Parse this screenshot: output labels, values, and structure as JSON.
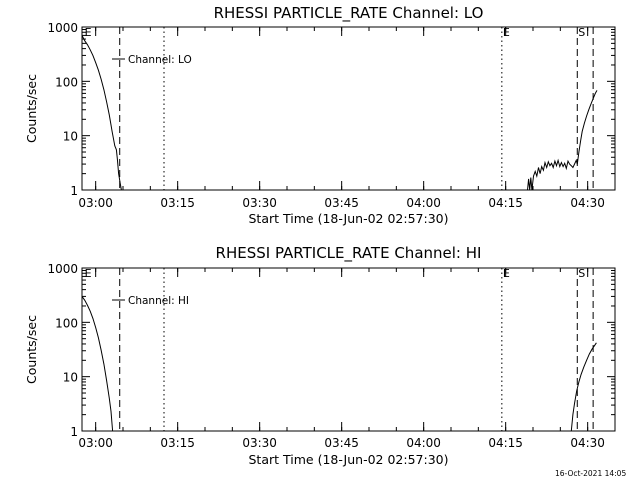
{
  "footer": {
    "timestamp": "16-Oct-2021 14:05"
  },
  "chart_data": [
    {
      "type": "line",
      "title": "RHESSI PARTICLE_RATE Channel: LO",
      "xlabel": "Start Time (18-Jun-02 02:57:30)",
      "ylabel": "Counts/sec",
      "yscale": "log",
      "ylim": [
        1,
        1000
      ],
      "xlim_minutes": [
        0,
        97.5
      ],
      "x_ticks": [
        {
          "min": 2.5,
          "label": "03:00"
        },
        {
          "min": 17.5,
          "label": "03:15"
        },
        {
          "min": 32.5,
          "label": "03:30"
        },
        {
          "min": 47.5,
          "label": "03:45"
        },
        {
          "min": 62.5,
          "label": "04:00"
        },
        {
          "min": 77.5,
          "label": "04:15"
        },
        {
          "min": 92.5,
          "label": "04:30"
        }
      ],
      "y_ticks": [
        {
          "value": 1,
          "label": "1"
        },
        {
          "value": 10,
          "label": "10"
        },
        {
          "value": 100,
          "label": "100"
        },
        {
          "value": 1000,
          "label": "1000"
        }
      ],
      "legend": "Channel: LO",
      "markers": [
        {
          "min": 0.3,
          "label": "E"
        },
        {
          "min": 76.8,
          "label": "E"
        },
        {
          "min": 90.6,
          "label": "S"
        }
      ],
      "vlines": [
        {
          "min": 6.9,
          "style": "dashed"
        },
        {
          "min": 15.0,
          "style": "dotted"
        },
        {
          "min": 76.8,
          "style": "dotted"
        },
        {
          "min": 90.6,
          "style": "dashed"
        },
        {
          "min": 93.5,
          "style": "dashed"
        }
      ],
      "series": [
        {
          "name": "Channel: LO",
          "segments": [
            [
              [
                0.0,
                700
              ],
              [
                0.5,
                560
              ],
              [
                1.0,
                470
              ],
              [
                1.5,
                380
              ],
              [
                2.0,
                300
              ],
              [
                2.5,
                220
              ],
              [
                3.0,
                160
              ],
              [
                3.5,
                110
              ],
              [
                4.0,
                70
              ],
              [
                4.5,
                42
              ],
              [
                5.0,
                24
              ],
              [
                5.5,
                12
              ],
              [
                6.0,
                6.5
              ],
              [
                6.3,
                5.5
              ],
              [
                6.5,
                3.5
              ],
              [
                6.7,
                2.0
              ],
              [
                7.0,
                1.3
              ],
              [
                7.2,
                1.0
              ]
            ],
            [
              [
                81.5,
                1.0
              ],
              [
                81.7,
                1.6
              ],
              [
                81.9,
                1.0
              ],
              [
                82.1,
                1.7
              ],
              [
                82.3,
                1.0
              ],
              [
                82.6,
                1.8
              ],
              [
                82.9,
                2.2
              ],
              [
                83.2,
                1.8
              ],
              [
                83.5,
                2.6
              ],
              [
                83.8,
                2.0
              ],
              [
                84.1,
                2.7
              ],
              [
                84.4,
                2.3
              ],
              [
                84.7,
                3.2
              ],
              [
                85.0,
                2.6
              ],
              [
                85.3,
                3.3
              ],
              [
                85.6,
                2.8
              ],
              [
                85.9,
                3.1
              ],
              [
                86.2,
                2.6
              ],
              [
                86.5,
                3.4
              ],
              [
                86.8,
                2.8
              ],
              [
                87.1,
                3.5
              ],
              [
                87.4,
                2.7
              ],
              [
                87.7,
                3.2
              ],
              [
                88.0,
                2.7
              ],
              [
                88.3,
                3.1
              ],
              [
                88.6,
                2.5
              ],
              [
                88.9,
                3.4
              ],
              [
                89.2,
                3.0
              ],
              [
                89.5,
                2.8
              ],
              [
                89.8,
                2.6
              ],
              [
                90.1,
                3.0
              ],
              [
                90.4,
                3.5
              ],
              [
                90.6,
                3.0
              ],
              [
                90.9,
                5.0
              ],
              [
                91.2,
                8.0
              ],
              [
                91.5,
                12
              ],
              [
                91.9,
                17
              ],
              [
                92.3,
                23
              ],
              [
                92.7,
                30
              ],
              [
                93.1,
                38
              ],
              [
                93.5,
                48
              ],
              [
                93.9,
                60
              ],
              [
                94.2,
                68
              ]
            ]
          ]
        }
      ]
    },
    {
      "type": "line",
      "title": "RHESSI PARTICLE_RATE Channel: HI",
      "xlabel": "Start Time (18-Jun-02 02:57:30)",
      "ylabel": "Counts/sec",
      "yscale": "log",
      "ylim": [
        1,
        1000
      ],
      "xlim_minutes": [
        0,
        97.5
      ],
      "x_ticks": [
        {
          "min": 2.5,
          "label": "03:00"
        },
        {
          "min": 17.5,
          "label": "03:15"
        },
        {
          "min": 32.5,
          "label": "03:30"
        },
        {
          "min": 47.5,
          "label": "03:45"
        },
        {
          "min": 62.5,
          "label": "04:00"
        },
        {
          "min": 77.5,
          "label": "04:15"
        },
        {
          "min": 92.5,
          "label": "04:30"
        }
      ],
      "y_ticks": [
        {
          "value": 1,
          "label": "1"
        },
        {
          "value": 10,
          "label": "10"
        },
        {
          "value": 100,
          "label": "100"
        },
        {
          "value": 1000,
          "label": "1000"
        }
      ],
      "legend": "Channel: HI",
      "markers": [
        {
          "min": 0.3,
          "label": "E"
        },
        {
          "min": 76.8,
          "label": "E"
        },
        {
          "min": 90.6,
          "label": "S"
        }
      ],
      "vlines": [
        {
          "min": 6.9,
          "style": "dashed"
        },
        {
          "min": 15.0,
          "style": "dotted"
        },
        {
          "min": 76.8,
          "style": "dotted"
        },
        {
          "min": 90.6,
          "style": "dashed"
        },
        {
          "min": 93.5,
          "style": "dashed"
        }
      ],
      "series": [
        {
          "name": "Channel: HI",
          "segments": [
            [
              [
                0.0,
                300
              ],
              [
                0.5,
                255
              ],
              [
                1.0,
                205
              ],
              [
                1.5,
                160
              ],
              [
                2.0,
                118
              ],
              [
                2.5,
                80
              ],
              [
                3.0,
                52
              ],
              [
                3.5,
                31
              ],
              [
                4.0,
                17
              ],
              [
                4.5,
                8.5
              ],
              [
                5.0,
                4.0
              ],
              [
                5.3,
                2.3
              ],
              [
                5.6,
                1.0
              ]
            ],
            [
              [
                89.5,
                1.0
              ],
              [
                89.8,
                2.0
              ],
              [
                90.1,
                3.2
              ],
              [
                90.5,
                5.5
              ],
              [
                90.9,
                8.0
              ],
              [
                91.3,
                11
              ],
              [
                91.8,
                15
              ],
              [
                92.3,
                20
              ],
              [
                92.8,
                26
              ],
              [
                93.3,
                32
              ],
              [
                93.8,
                38
              ],
              [
                94.1,
                42
              ]
            ]
          ]
        }
      ]
    }
  ]
}
